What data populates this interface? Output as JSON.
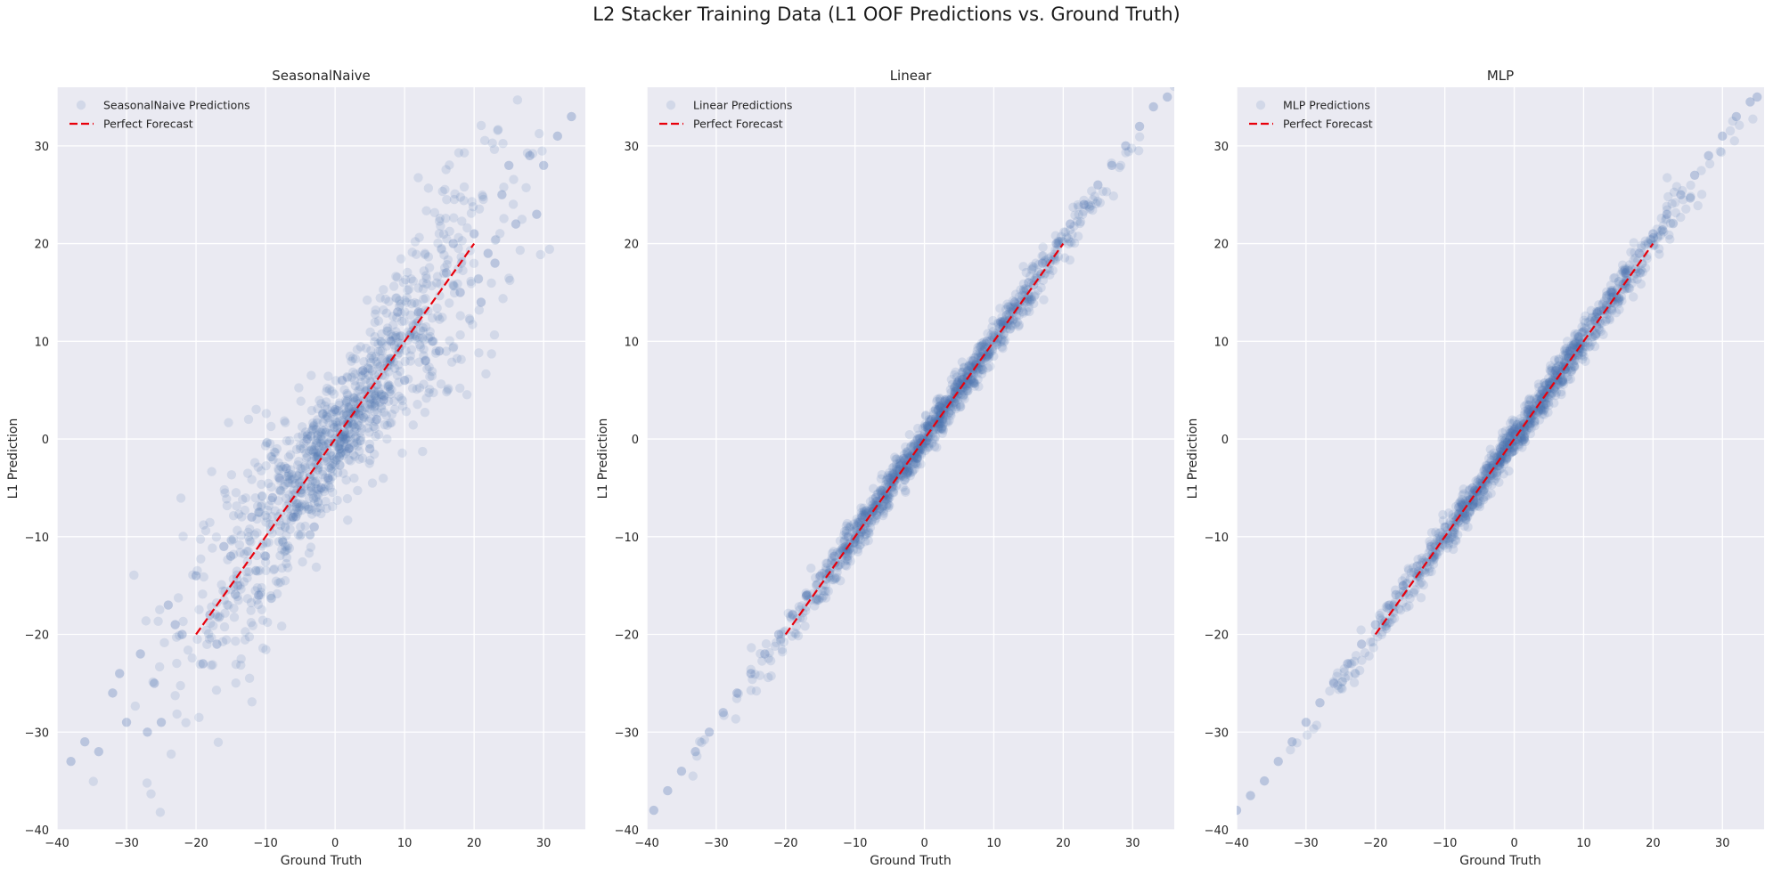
{
  "suptitle": "L2 Stacker Training Data (L1 OOF Predictions vs. Ground Truth)",
  "style": {
    "background": "#ffffff",
    "axes_facecolor": "#eaeaf2",
    "grid_color": "#ffffff",
    "point_color": "#4c72b0",
    "point_alpha": 0.15,
    "line_color": "#e8000b"
  },
  "chart_data": [
    {
      "type": "scatter",
      "title": "SeasonalNaive",
      "xlabel": "Ground Truth",
      "ylabel": "L1 Prediction",
      "xlim": [
        -40,
        36
      ],
      "ylim": [
        -40,
        36
      ],
      "xticks": [
        -40,
        -30,
        -20,
        -10,
        0,
        10,
        20,
        30
      ],
      "yticks": [
        -40,
        -30,
        -20,
        -10,
        0,
        10,
        20,
        30
      ],
      "grid": true,
      "legend_position": "top-left",
      "series": [
        {
          "name": "SeasonalNaive Predictions",
          "kind": "scatter",
          "points_x": [
            -38,
            -36,
            -34,
            -32,
            -30,
            -28,
            -26,
            -24,
            -22,
            -20,
            -18,
            -16,
            -14,
            -12,
            -10,
            -8,
            -6,
            -4,
            -2,
            0,
            2,
            4,
            6,
            8,
            10,
            12,
            14,
            16,
            18,
            20,
            22,
            24,
            26,
            28,
            30,
            32,
            34,
            -31,
            -27,
            -23,
            -19,
            -15,
            -11,
            -7,
            -3,
            1,
            5,
            9,
            13,
            17,
            21,
            25,
            29,
            -25,
            -17,
            -9,
            -1,
            7,
            15,
            23
          ],
          "points_y": [
            -33,
            -31,
            -32,
            -26,
            -29,
            -22,
            -25,
            -17,
            -20,
            -14,
            -18,
            -11,
            -15,
            -8,
            -12,
            -4,
            -8,
            0,
            -5,
            3,
            -1,
            7,
            2,
            10,
            6,
            13,
            10,
            17,
            15,
            21,
            19,
            25,
            22,
            29,
            28,
            31,
            33,
            -24,
            -30,
            -19,
            -23,
            -12,
            -16,
            -3,
            -9,
            6,
            -1,
            13,
            8,
            20,
            14,
            28,
            23,
            -29,
            -21,
            -6,
            -4,
            4,
            9,
            18
          ]
        },
        {
          "name": "Perfect Forecast",
          "kind": "line",
          "x": [
            -20,
            20
          ],
          "y": [
            -20,
            20
          ]
        }
      ]
    },
    {
      "type": "scatter",
      "title": "Linear",
      "xlabel": "Ground Truth",
      "ylabel": "L1 Prediction",
      "xlim": [
        -40,
        36
      ],
      "ylim": [
        -40,
        36
      ],
      "xticks": [
        -40,
        -30,
        -20,
        -10,
        0,
        10,
        20,
        30
      ],
      "yticks": [
        -40,
        -30,
        -20,
        -10,
        0,
        10,
        20,
        30
      ],
      "grid": true,
      "legend_position": "top-left",
      "series": [
        {
          "name": "Linear Predictions",
          "kind": "scatter",
          "points_x": [
            -39,
            -37,
            -35,
            -33,
            -31,
            -29,
            -27,
            -25,
            -23,
            -21,
            -19,
            -17,
            -15,
            -13,
            -11,
            -9,
            -7,
            -5,
            -3,
            -1,
            1,
            3,
            5,
            7,
            9,
            11,
            13,
            15,
            17,
            19,
            21,
            23,
            25,
            27,
            29,
            31,
            33,
            35
          ],
          "points_y": [
            -38,
            -36,
            -34,
            -32,
            -30,
            -28,
            -26,
            -24,
            -22,
            -20,
            -18,
            -16,
            -14,
            -12,
            -10,
            -8,
            -6,
            -4,
            -2,
            0,
            2,
            4,
            6,
            8,
            10,
            12,
            14,
            16,
            18,
            20,
            22,
            24,
            26,
            28,
            30,
            32,
            34,
            35
          ]
        },
        {
          "name": "Perfect Forecast",
          "kind": "line",
          "x": [
            -20,
            20
          ],
          "y": [
            -20,
            20
          ]
        }
      ]
    },
    {
      "type": "scatter",
      "title": "MLP",
      "xlabel": "Ground Truth",
      "ylabel": "L1 Prediction",
      "xlim": [
        -40,
        36
      ],
      "ylim": [
        -40,
        36
      ],
      "xticks": [
        -40,
        -30,
        -20,
        -10,
        0,
        10,
        20,
        30
      ],
      "yticks": [
        -40,
        -30,
        -20,
        -10,
        0,
        10,
        20,
        30
      ],
      "grid": true,
      "legend_position": "top-left",
      "series": [
        {
          "name": "MLP Predictions",
          "kind": "scatter",
          "points_x": [
            -40,
            -38,
            -36,
            -34,
            -32,
            -30,
            -28,
            -26,
            -24,
            -22,
            -20,
            -18,
            -16,
            -14,
            -12,
            -10,
            -8,
            -6,
            -4,
            -2,
            0,
            2,
            4,
            6,
            8,
            10,
            12,
            14,
            16,
            18,
            20,
            22,
            24,
            26,
            28,
            30,
            32,
            34,
            35
          ],
          "points_y": [
            -38,
            -36.5,
            -35,
            -33,
            -31,
            -29,
            -27,
            -25,
            -23,
            -21,
            -19,
            -17,
            -15,
            -13,
            -11,
            -9,
            -7,
            -5,
            -3,
            -1,
            1,
            3,
            5,
            7,
            9,
            11,
            13,
            15,
            17,
            19,
            21,
            23,
            25,
            27,
            29,
            31,
            33,
            34.5,
            35
          ]
        },
        {
          "name": "Perfect Forecast",
          "kind": "line",
          "x": [
            -20,
            20
          ],
          "y": [
            -20,
            20
          ]
        }
      ]
    }
  ]
}
